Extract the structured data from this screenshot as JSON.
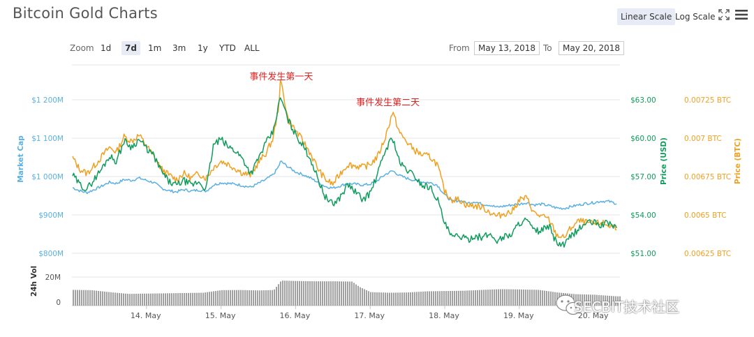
{
  "header": {
    "title": "Bitcoin Gold Charts"
  },
  "toolbar": {
    "linear_scale_label": "Linear Scale",
    "log_scale_label": "Log Scale",
    "fullscreen_icon": "fullscreen-icon",
    "menu_icon": "hamburger-menu-icon"
  },
  "zoom": {
    "label": "Zoom",
    "options": [
      "1d",
      "7d",
      "1m",
      "3m",
      "1y",
      "YTD",
      "ALL"
    ],
    "selected": "7d"
  },
  "range": {
    "from_label": "From",
    "from_value": "May 13, 2018",
    "to_label": "To",
    "to_value": "May 20, 2018"
  },
  "watermark": {
    "text": "SECBIT技术社区"
  },
  "colors": {
    "market_cap": "#5ab0e3",
    "price_usd": "#0f9b5c",
    "price_btc": "#f0a020",
    "volume": "#a0a0a0",
    "annotation": "#e02020",
    "grid": "#e6e6e6"
  },
  "chart_data": {
    "type": "line",
    "x_axis": {
      "tick_labels": [
        "14. May",
        "15. May",
        "16. May",
        "17. May",
        "18. May",
        "19. May",
        "20. May"
      ]
    },
    "axes": {
      "market_cap": {
        "label": "Market Cap",
        "ticks": [
          "$1 200M",
          "$1 100M",
          "$1 000M",
          "$900M",
          "$800M"
        ],
        "range": [
          800,
          1200
        ],
        "unit": "M USD"
      },
      "price_usd": {
        "label": "Price (USD)",
        "ticks": [
          "$63.00",
          "$60.00",
          "$57.00",
          "$54.00",
          "$51.00"
        ],
        "range": [
          51,
          63
        ]
      },
      "price_btc": {
        "label": "Price (BTC)",
        "ticks": [
          "0.00725 BTC",
          "0.007 BTC",
          "0.00675 BTC",
          "0.0065 BTC",
          "0.00625 BTC"
        ],
        "range": [
          0.00625,
          0.00725
        ]
      },
      "volume": {
        "label": "24h Vol",
        "ticks": [
          "20M",
          "0"
        ],
        "range": [
          0,
          20
        ]
      }
    },
    "annotations": [
      {
        "text": "事件发生第一天",
        "x": 15.77
      },
      {
        "text": "事件发生第二天",
        "x": 17.2
      }
    ],
    "series": [
      {
        "key": "price_usd",
        "color": "#0f9b5c",
        "points": [
          [
            13.0,
            57.2
          ],
          [
            13.1,
            56.4
          ],
          [
            13.2,
            56.0
          ],
          [
            13.3,
            56.8
          ],
          [
            13.4,
            57.6
          ],
          [
            13.5,
            58.6
          ],
          [
            13.6,
            58.2
          ],
          [
            13.7,
            59.8
          ],
          [
            13.8,
            59.3
          ],
          [
            13.9,
            59.9
          ],
          [
            14.0,
            59.2
          ],
          [
            14.1,
            58.6
          ],
          [
            14.2,
            57.4
          ],
          [
            14.3,
            56.6
          ],
          [
            14.4,
            56.3
          ],
          [
            14.5,
            56.7
          ],
          [
            14.6,
            56.3
          ],
          [
            14.7,
            56.6
          ],
          [
            14.8,
            56.0
          ],
          [
            14.9,
            59.5
          ],
          [
            15.0,
            59.9
          ],
          [
            15.1,
            59.3
          ],
          [
            15.2,
            59.0
          ],
          [
            15.3,
            58.3
          ],
          [
            15.4,
            57.2
          ],
          [
            15.5,
            58.4
          ],
          [
            15.6,
            59.6
          ],
          [
            15.7,
            60.5
          ],
          [
            15.77,
            62.5
          ],
          [
            15.8,
            63.2
          ],
          [
            15.9,
            61.4
          ],
          [
            16.0,
            60.3
          ],
          [
            16.1,
            59.4
          ],
          [
            16.2,
            58.4
          ],
          [
            16.3,
            56.8
          ],
          [
            16.4,
            55.4
          ],
          [
            16.5,
            54.8
          ],
          [
            16.6,
            55.4
          ],
          [
            16.7,
            56.4
          ],
          [
            16.8,
            55.8
          ],
          [
            16.9,
            55.2
          ],
          [
            17.0,
            55.7
          ],
          [
            17.1,
            57.2
          ],
          [
            17.2,
            59.0
          ],
          [
            17.3,
            60.1
          ],
          [
            17.4,
            58.0
          ],
          [
            17.5,
            57.5
          ],
          [
            17.6,
            57.0
          ],
          [
            17.7,
            56.3
          ],
          [
            17.8,
            56.2
          ],
          [
            17.9,
            55.3
          ],
          [
            18.0,
            53.3
          ],
          [
            18.1,
            52.2
          ],
          [
            18.2,
            52.4
          ],
          [
            18.3,
            52.0
          ],
          [
            18.4,
            52.4
          ],
          [
            18.5,
            52.2
          ],
          [
            18.6,
            52.5
          ],
          [
            18.7,
            52.0
          ],
          [
            18.8,
            52.3
          ],
          [
            18.9,
            52.5
          ],
          [
            19.0,
            53.4
          ],
          [
            19.1,
            53.6
          ],
          [
            19.2,
            52.7
          ],
          [
            19.3,
            52.8
          ],
          [
            19.4,
            53.1
          ],
          [
            19.5,
            51.8
          ],
          [
            19.6,
            51.6
          ],
          [
            19.7,
            52.4
          ],
          [
            19.8,
            52.9
          ],
          [
            19.9,
            53.4
          ],
          [
            20.0,
            53.4
          ],
          [
            20.1,
            53.2
          ],
          [
            20.2,
            53.4
          ],
          [
            20.3,
            53.0
          ]
        ]
      },
      {
        "key": "price_btc",
        "color": "#f0a020",
        "points": [
          [
            13.0,
            0.00688
          ],
          [
            13.1,
            0.0068
          ],
          [
            13.2,
            0.00677
          ],
          [
            13.3,
            0.00682
          ],
          [
            13.4,
            0.00688
          ],
          [
            13.5,
            0.00694
          ],
          [
            13.6,
            0.00691
          ],
          [
            13.7,
            0.00701
          ],
          [
            13.8,
            0.00698
          ],
          [
            13.9,
            0.00702
          ],
          [
            14.0,
            0.00695
          ],
          [
            14.1,
            0.00688
          ],
          [
            14.2,
            0.0068
          ],
          [
            14.3,
            0.00676
          ],
          [
            14.4,
            0.00673
          ],
          [
            14.5,
            0.00677
          ],
          [
            14.6,
            0.00674
          ],
          [
            14.7,
            0.00677
          ],
          [
            14.8,
            0.00674
          ],
          [
            14.9,
            0.00681
          ],
          [
            15.0,
            0.00685
          ],
          [
            15.1,
            0.00683
          ],
          [
            15.2,
            0.0068
          ],
          [
            15.3,
            0.00677
          ],
          [
            15.4,
            0.00676
          ],
          [
            15.5,
            0.00684
          ],
          [
            15.6,
            0.0069
          ],
          [
            15.7,
            0.007
          ],
          [
            15.77,
            0.0072
          ],
          [
            15.8,
            0.00738
          ],
          [
            15.9,
            0.00712
          ],
          [
            16.0,
            0.00705
          ],
          [
            16.1,
            0.00698
          ],
          [
            16.2,
            0.0069
          ],
          [
            16.3,
            0.0068
          ],
          [
            16.4,
            0.00673
          ],
          [
            16.5,
            0.0067
          ],
          [
            16.6,
            0.00677
          ],
          [
            16.7,
            0.00683
          ],
          [
            16.8,
            0.00682
          ],
          [
            16.9,
            0.00681
          ],
          [
            17.0,
            0.00683
          ],
          [
            17.1,
            0.00688
          ],
          [
            17.2,
            0.007
          ],
          [
            17.3,
            0.00717
          ],
          [
            17.4,
            0.00703
          ],
          [
            17.5,
            0.00697
          ],
          [
            17.6,
            0.00692
          ],
          [
            17.7,
            0.00689
          ],
          [
            17.8,
            0.00688
          ],
          [
            17.9,
            0.00683
          ],
          [
            18.0,
            0.00665
          ],
          [
            18.1,
            0.0066
          ],
          [
            18.2,
            0.0066
          ],
          [
            18.3,
            0.00656
          ],
          [
            18.4,
            0.00656
          ],
          [
            18.5,
            0.00655
          ],
          [
            18.6,
            0.00652
          ],
          [
            18.7,
            0.00649
          ],
          [
            18.8,
            0.00651
          ],
          [
            18.9,
            0.00652
          ],
          [
            19.0,
            0.0066
          ],
          [
            19.1,
            0.00661
          ],
          [
            19.2,
            0.00651
          ],
          [
            19.3,
            0.00649
          ],
          [
            19.4,
            0.00647
          ],
          [
            19.5,
            0.00637
          ],
          [
            19.6,
            0.00635
          ],
          [
            19.7,
            0.00642
          ],
          [
            19.8,
            0.00646
          ],
          [
            19.9,
            0.00645
          ],
          [
            20.0,
            0.00644
          ],
          [
            20.1,
            0.00645
          ],
          [
            20.2,
            0.00643
          ],
          [
            20.3,
            0.00642
          ]
        ]
      },
      {
        "key": "market_cap",
        "color": "#5ab0e3",
        "points": [
          [
            13.0,
            972
          ],
          [
            13.1,
            963
          ],
          [
            13.2,
            958
          ],
          [
            13.3,
            966
          ],
          [
            13.4,
            975
          ],
          [
            13.5,
            985
          ],
          [
            13.6,
            982
          ],
          [
            13.7,
            992
          ],
          [
            13.8,
            990
          ],
          [
            13.9,
            996
          ],
          [
            14.0,
            990
          ],
          [
            14.1,
            984
          ],
          [
            14.2,
            970
          ],
          [
            14.3,
            963
          ],
          [
            14.4,
            960
          ],
          [
            14.5,
            966
          ],
          [
            14.6,
            962
          ],
          [
            14.7,
            965
          ],
          [
            14.8,
            962
          ],
          [
            14.9,
            978
          ],
          [
            15.0,
            984
          ],
          [
            15.1,
            982
          ],
          [
            15.2,
            980
          ],
          [
            15.3,
            976
          ],
          [
            15.4,
            972
          ],
          [
            15.5,
            982
          ],
          [
            15.6,
            992
          ],
          [
            15.7,
            1005
          ],
          [
            15.77,
            1025
          ],
          [
            15.8,
            1040
          ],
          [
            15.9,
            1025
          ],
          [
            16.0,
            1012
          ],
          [
            16.1,
            1005
          ],
          [
            16.2,
            996
          ],
          [
            16.3,
            985
          ],
          [
            16.4,
            974
          ],
          [
            16.5,
            970
          ],
          [
            16.6,
            976
          ],
          [
            16.7,
            982
          ],
          [
            16.8,
            980
          ],
          [
            16.9,
            978
          ],
          [
            17.0,
            980
          ],
          [
            17.1,
            990
          ],
          [
            17.2,
            1005
          ],
          [
            17.3,
            1015
          ],
          [
            17.4,
            1002
          ],
          [
            17.5,
            995
          ],
          [
            17.6,
            990
          ],
          [
            17.7,
            986
          ],
          [
            17.8,
            984
          ],
          [
            17.9,
            978
          ],
          [
            18.0,
            952
          ],
          [
            18.1,
            935
          ],
          [
            18.2,
            938
          ],
          [
            18.3,
            930
          ],
          [
            18.4,
            935
          ],
          [
            18.5,
            928
          ],
          [
            18.6,
            926
          ],
          [
            18.7,
            920
          ],
          [
            18.8,
            923
          ],
          [
            18.9,
            926
          ],
          [
            19.0,
            928
          ],
          [
            19.1,
            932
          ],
          [
            19.2,
            926
          ],
          [
            19.3,
            928
          ],
          [
            19.4,
            924
          ],
          [
            19.5,
            918
          ],
          [
            19.6,
            917
          ],
          [
            19.7,
            922
          ],
          [
            19.8,
            926
          ],
          [
            19.9,
            930
          ],
          [
            20.0,
            932
          ],
          [
            20.1,
            936
          ],
          [
            20.2,
            935
          ],
          [
            20.3,
            930
          ]
        ]
      },
      {
        "key": "volume",
        "color": "#a0a0a0",
        "points": [
          [
            13.0,
            11.0
          ],
          [
            13.25,
            10.8
          ],
          [
            13.5,
            9.4
          ],
          [
            13.75,
            8.2
          ],
          [
            14.0,
            8.4
          ],
          [
            14.25,
            8.6
          ],
          [
            14.5,
            8.8
          ],
          [
            14.75,
            9.0
          ],
          [
            15.0,
            10.8
          ],
          [
            15.25,
            10.9
          ],
          [
            15.5,
            10.6
          ],
          [
            15.7,
            10.9
          ],
          [
            15.8,
            17.5
          ],
          [
            16.0,
            17.2
          ],
          [
            16.25,
            17.0
          ],
          [
            16.5,
            17.0
          ],
          [
            16.75,
            16.8
          ],
          [
            16.85,
            13.0
          ],
          [
            17.0,
            9.4
          ],
          [
            17.25,
            9.0
          ],
          [
            17.5,
            9.2
          ],
          [
            17.75,
            10.0
          ],
          [
            18.0,
            10.2
          ],
          [
            18.25,
            10.4
          ],
          [
            18.5,
            11.0
          ],
          [
            18.75,
            11.5
          ],
          [
            19.0,
            11.3
          ],
          [
            19.25,
            11.0
          ],
          [
            19.5,
            9.2
          ],
          [
            19.75,
            8.0
          ],
          [
            20.0,
            7.6
          ],
          [
            20.3,
            6.5
          ]
        ]
      }
    ]
  }
}
